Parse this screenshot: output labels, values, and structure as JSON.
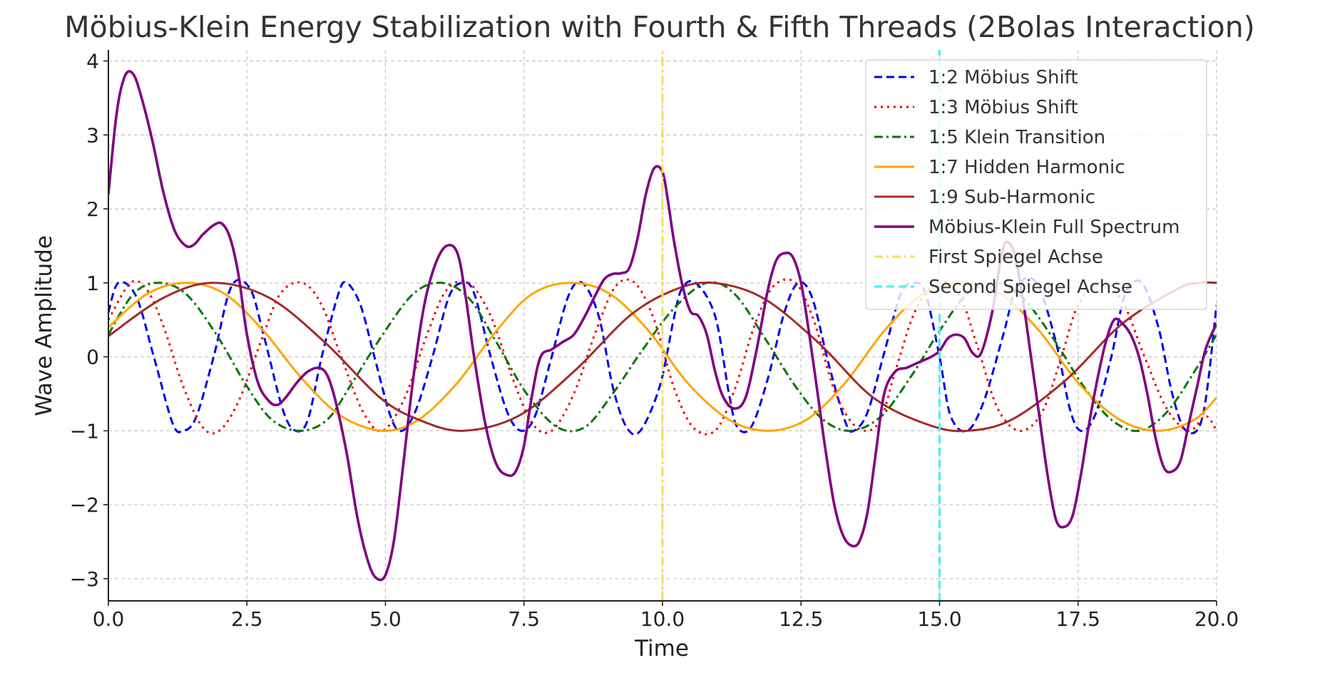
{
  "chart_data": {
    "type": "line",
    "title": "Möbius-Klein Energy Stabilization with Fourth & Fifth Threads (2Bolas Interaction)",
    "xlabel": "Time",
    "ylabel": "Wave Amplitude",
    "xlim": [
      0,
      20
    ],
    "ylim": [
      -3.3,
      4.15
    ],
    "xticks": [
      0,
      2.5,
      5,
      7.5,
      10,
      12.5,
      15,
      17.5,
      20
    ],
    "xtick_labels": [
      "0.0",
      "2.5",
      "5.0",
      "7.5",
      "10.0",
      "12.5",
      "15.0",
      "17.5",
      "20.0"
    ],
    "yticks": [
      -3,
      -2,
      -1,
      0,
      1,
      2,
      3,
      4
    ],
    "ytick_labels": [
      "−3",
      "−2",
      "−1",
      "0",
      "1",
      "2",
      "3",
      "4"
    ],
    "grid": true,
    "legend_position": "top-right",
    "series": [
      {
        "name": "1:2 Möbius Shift",
        "color": "#0000ee",
        "style": "dashed",
        "width": 3,
        "x": [
          0,
          0.18,
          0.5,
          0.82,
          1.16,
          1.35,
          1.58,
          1.9,
          2.22,
          2.55,
          2.8,
          3.15,
          3.38,
          3.6,
          3.85,
          4.15,
          4.3,
          4.55,
          4.8,
          5.1,
          5.3,
          5.55,
          5.85,
          6.15,
          6.4,
          6.6,
          6.9,
          7.2,
          7.45,
          7.7,
          8.0,
          8.3,
          8.55,
          8.85,
          9.1,
          9.35,
          9.6,
          9.95,
          10.2,
          10.35,
          10.6,
          10.95,
          11.2,
          11.35,
          11.6,
          11.9,
          12.2,
          12.45,
          12.7,
          13.0,
          13.3,
          13.45,
          13.7,
          14.0,
          14.3,
          14.55,
          14.75,
          15.0,
          15.2,
          15.5,
          15.8,
          16.15,
          16.4,
          16.75,
          17.1,
          17.35,
          17.55,
          17.8,
          18.1,
          18.35,
          18.65,
          18.95,
          19.2,
          19.45,
          19.75,
          20.0
        ],
        "y": [
          0.6,
          1.0,
          0.82,
          0.0,
          -0.9,
          -1.0,
          -0.82,
          0.0,
          0.95,
          0.93,
          0.3,
          -0.72,
          -1.0,
          -0.85,
          0.0,
          0.85,
          1.0,
          0.7,
          0.0,
          -0.82,
          -1.0,
          -0.72,
          0.0,
          0.82,
          1.0,
          0.86,
          0.0,
          -0.75,
          -1.0,
          -0.8,
          0.0,
          0.82,
          1.0,
          0.55,
          -0.4,
          -0.95,
          -1.0,
          -0.4,
          0.5,
          0.92,
          1.0,
          0.55,
          -0.5,
          -0.95,
          -0.95,
          -0.3,
          0.6,
          1.0,
          0.8,
          -0.1,
          -0.88,
          -1.0,
          -0.75,
          0.05,
          0.85,
          1.0,
          0.85,
          0.0,
          -0.8,
          -1.0,
          -0.6,
          0.3,
          0.95,
          1.0,
          0.2,
          -0.7,
          -1.0,
          -0.8,
          0.0,
          0.85,
          1.0,
          0.4,
          -0.5,
          -1.0,
          -0.8,
          0.7
        ]
      },
      {
        "name": "1:3 Möbius Shift",
        "color": "#ee0000",
        "style": "dotted",
        "width": 3,
        "x": [
          0,
          0.4,
          0.7,
          1.0,
          1.35,
          1.7,
          2.0,
          2.35,
          2.75,
          3.1,
          3.5,
          3.85,
          4.2,
          4.6,
          4.95,
          5.35,
          5.75,
          6.1,
          6.5,
          6.9,
          7.3,
          7.65,
          8.0,
          8.4,
          8.8,
          9.15,
          9.5,
          9.85,
          10.2,
          10.55,
          10.95,
          11.3,
          11.65,
          12.0,
          12.4,
          12.75,
          13.1,
          13.5,
          13.9,
          14.2,
          14.55,
          14.95,
          15.35,
          15.7,
          16.05,
          16.45,
          16.85,
          17.2,
          17.5,
          17.9,
          18.3,
          18.7,
          19.1,
          19.5,
          19.8,
          20.0
        ],
        "y": [
          0.5,
          1.0,
          0.9,
          0.4,
          -0.4,
          -0.95,
          -1.0,
          -0.6,
          0.2,
          0.85,
          1.0,
          0.7,
          0.0,
          -0.75,
          -1.0,
          -0.55,
          0.3,
          0.9,
          1.0,
          0.55,
          -0.3,
          -0.9,
          -1.0,
          -0.5,
          0.35,
          0.95,
          1.0,
          0.5,
          -0.4,
          -0.95,
          -1.0,
          -0.45,
          0.4,
          0.95,
          1.0,
          0.45,
          -0.45,
          -0.95,
          -0.9,
          -0.2,
          0.6,
          1.0,
          0.85,
          0.1,
          -0.7,
          -1.0,
          -0.75,
          0.0,
          0.7,
          1.0,
          0.75,
          0.0,
          -0.7,
          -1.0,
          -0.8,
          -1.0
        ]
      },
      {
        "name": "1:5 Klein Transition",
        "color": "#007700",
        "style": "dashdot",
        "width": 3,
        "x": [
          0,
          0.45,
          0.9,
          1.4,
          1.95,
          2.5,
          2.95,
          3.45,
          3.95,
          4.4,
          4.95,
          5.5,
          6.0,
          6.5,
          7.0,
          7.55,
          8.1,
          8.6,
          9.1,
          9.6,
          10.2,
          10.8,
          11.3,
          11.85,
          12.4,
          12.9,
          13.4,
          13.95,
          14.5,
          15.0,
          15.5,
          16.0,
          16.5,
          17.05,
          17.6,
          18.1,
          18.6,
          19.1,
          19.6,
          20.0
        ],
        "y": [
          0.3,
          0.85,
          1.0,
          0.85,
          0.3,
          -0.4,
          -0.85,
          -1.0,
          -0.85,
          -0.35,
          0.3,
          0.85,
          1.0,
          0.8,
          0.2,
          -0.5,
          -0.95,
          -0.95,
          -0.5,
          0.05,
          0.65,
          1.0,
          0.85,
          0.25,
          -0.4,
          -0.85,
          -1.0,
          -0.8,
          -0.25,
          0.35,
          0.85,
          1.0,
          0.8,
          0.25,
          -0.4,
          -0.85,
          -1.0,
          -0.75,
          -0.2,
          0.3
        ]
      },
      {
        "name": "1:7 Hidden Harmonic",
        "color": "#ffa500",
        "style": "solid",
        "width": 3,
        "x": [
          0,
          0.7,
          1.4,
          2.1,
          2.8,
          3.5,
          4.2,
          4.95,
          5.6,
          6.3,
          7.0,
          7.65,
          8.35,
          9.05,
          9.75,
          10.45,
          11.2,
          11.9,
          12.6,
          13.3,
          14.0,
          14.7,
          15.4,
          16.1,
          16.8,
          17.5,
          18.25,
          18.95,
          19.6,
          20.0
        ],
        "y": [
          0.4,
          0.85,
          1.0,
          0.85,
          0.35,
          -0.3,
          -0.8,
          -1.0,
          -0.85,
          -0.35,
          0.35,
          0.85,
          1.0,
          0.85,
          0.35,
          -0.35,
          -0.85,
          -1.0,
          -0.85,
          -0.35,
          0.35,
          0.85,
          1.0,
          0.85,
          0.35,
          -0.35,
          -0.85,
          -1.0,
          -0.85,
          -0.55
        ]
      },
      {
        "name": "1:9 Sub-Harmonic",
        "color": "#a52a2a",
        "style": "solid",
        "width": 3,
        "x": [
          0,
          1.0,
          1.9,
          2.9,
          3.9,
          4.9,
          5.6,
          6.4,
          7.4,
          8.4,
          9.4,
          10.2,
          10.9,
          11.8,
          12.8,
          13.8,
          14.8,
          15.5,
          16.3,
          17.3,
          18.3,
          19.3,
          19.7,
          20.0
        ],
        "y": [
          0.28,
          0.8,
          1.0,
          0.8,
          0.2,
          -0.55,
          -0.85,
          -1.0,
          -0.8,
          -0.2,
          0.55,
          0.9,
          1.0,
          0.8,
          0.2,
          -0.55,
          -0.92,
          -1.0,
          -0.85,
          -0.3,
          0.45,
          0.92,
          1.0,
          1.0
        ]
      },
      {
        "name": "Möbius-Klein Full Spectrum",
        "color": "#800080",
        "style": "solid",
        "width": 3.6,
        "x": [
          0,
          0.15,
          0.3,
          0.45,
          0.6,
          0.8,
          1.0,
          1.2,
          1.4,
          1.55,
          1.7,
          1.9,
          2.05,
          2.2,
          2.35,
          2.5,
          2.7,
          2.9,
          3.05,
          3.2,
          3.4,
          3.6,
          3.8,
          3.95,
          4.1,
          4.3,
          4.5,
          4.7,
          4.85,
          5.0,
          5.15,
          5.3,
          5.5,
          5.7,
          5.9,
          6.1,
          6.3,
          6.45,
          6.6,
          6.8,
          7.0,
          7.2,
          7.35,
          7.5,
          7.65,
          7.8,
          8.0,
          8.2,
          8.4,
          8.6,
          8.8,
          8.95,
          9.1,
          9.25,
          9.4,
          9.55,
          9.7,
          9.85,
          10.0,
          10.1,
          10.2,
          10.35,
          10.5,
          10.65,
          10.8,
          10.95,
          11.1,
          11.3,
          11.5,
          11.7,
          11.9,
          12.05,
          12.2,
          12.35,
          12.5,
          12.65,
          12.8,
          12.95,
          13.1,
          13.25,
          13.4,
          13.55,
          13.7,
          13.85,
          14.0,
          14.2,
          14.4,
          14.55,
          14.7,
          14.85,
          15.0,
          15.15,
          15.3,
          15.45,
          15.6,
          15.75,
          15.95,
          16.1,
          16.2,
          16.35,
          16.5,
          16.65,
          16.8,
          16.95,
          17.1,
          17.25,
          17.4,
          17.55,
          17.7,
          17.85,
          18.0,
          18.15,
          18.3,
          18.45,
          18.6,
          18.75,
          18.9,
          19.05,
          19.2,
          19.35,
          19.5,
          19.65,
          19.8,
          20.0
        ],
        "y": [
          2.2,
          3.3,
          3.8,
          3.82,
          3.5,
          2.9,
          2.2,
          1.7,
          1.5,
          1.52,
          1.65,
          1.78,
          1.8,
          1.6,
          1.1,
          0.3,
          -0.35,
          -0.6,
          -0.65,
          -0.55,
          -0.35,
          -0.2,
          -0.15,
          -0.25,
          -0.6,
          -1.3,
          -2.2,
          -2.8,
          -3.0,
          -2.95,
          -2.5,
          -1.6,
          -0.3,
          0.7,
          1.25,
          1.5,
          1.4,
          0.8,
          0.0,
          -0.9,
          -1.45,
          -1.6,
          -1.55,
          -1.2,
          -0.5,
          0.0,
          0.1,
          0.2,
          0.3,
          0.55,
          0.85,
          1.05,
          1.12,
          1.13,
          1.2,
          1.6,
          2.2,
          2.55,
          2.5,
          2.1,
          1.6,
          1.0,
          0.62,
          0.55,
          0.3,
          -0.2,
          -0.55,
          -0.7,
          -0.55,
          0.1,
          0.9,
          1.3,
          1.4,
          1.35,
          1.0,
          0.3,
          -0.5,
          -1.3,
          -2.0,
          -2.4,
          -2.55,
          -2.5,
          -2.1,
          -1.3,
          -0.5,
          -0.2,
          -0.15,
          -0.1,
          -0.05,
          0.0,
          0.08,
          0.25,
          0.3,
          0.25,
          0.05,
          0.05,
          0.6,
          1.3,
          1.55,
          1.4,
          0.8,
          0.0,
          -0.8,
          -1.6,
          -2.2,
          -2.3,
          -2.15,
          -1.6,
          -0.9,
          -0.3,
          0.2,
          0.5,
          0.45,
          0.3,
          0.0,
          -0.5,
          -1.1,
          -1.5,
          -1.55,
          -1.4,
          -0.9,
          -0.4,
          0.1,
          0.45
        ]
      },
      {
        "name": "First Spiegel Achse",
        "color": "#f5e050",
        "style": "dashdot",
        "width": 3,
        "x": [
          10,
          10
        ],
        "y": [
          -3.3,
          4.15
        ]
      },
      {
        "name": "Second Spiegel Achse",
        "color": "#40f2f8",
        "style": "dashed",
        "width": 3,
        "x": [
          15,
          15
        ],
        "y": [
          -3.3,
          4.15
        ]
      }
    ]
  }
}
